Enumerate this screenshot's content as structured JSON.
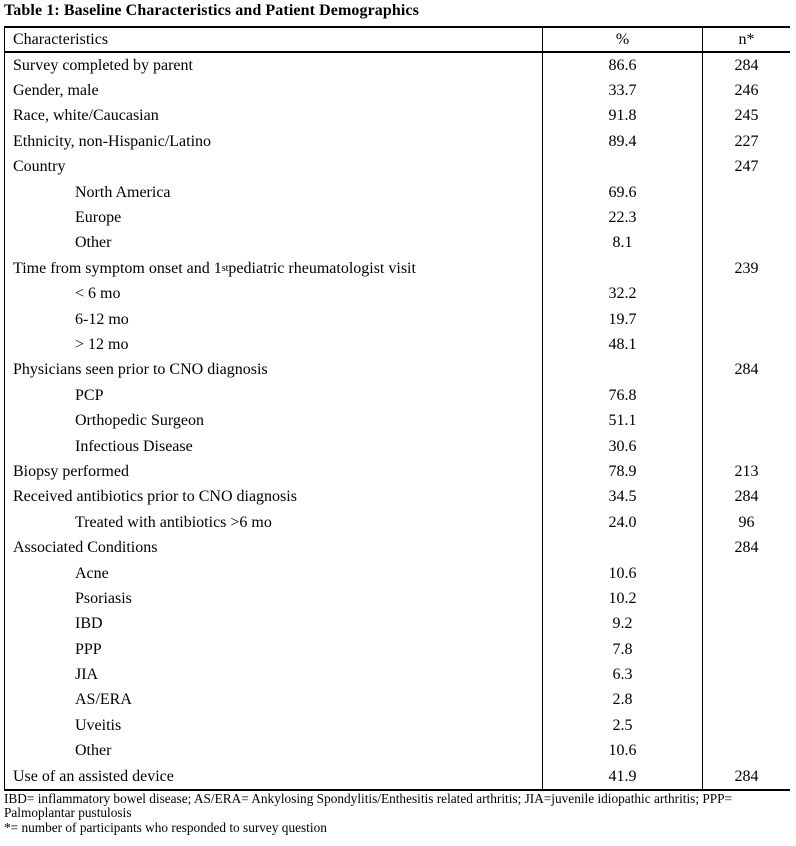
{
  "title": "Table 1: Baseline Characteristics and Patient Demographics",
  "table": {
    "columns": {
      "characteristics": "Characteristics",
      "percent": "%",
      "n": "n*"
    },
    "rows": [
      {
        "label": "Survey completed by parent",
        "indent": false,
        "pct": "86.6",
        "n": "284"
      },
      {
        "label": "Gender, male",
        "indent": false,
        "pct": "33.7",
        "n": "246"
      },
      {
        "label": "Race, white/Caucasian",
        "indent": false,
        "pct": "91.8",
        "n": "245"
      },
      {
        "label": "Ethnicity, non-Hispanic/Latino",
        "indent": false,
        "pct": "89.4",
        "n": "227"
      },
      {
        "label": "Country",
        "indent": false,
        "pct": "",
        "n": "247"
      },
      {
        "label": "North America",
        "indent": true,
        "pct": "69.6",
        "n": ""
      },
      {
        "label": "Europe",
        "indent": true,
        "pct": "22.3",
        "n": ""
      },
      {
        "label": "Other",
        "indent": true,
        "pct": "8.1",
        "n": ""
      },
      {
        "label_pre": "Time from symptom onset and 1",
        "label_sup": "st",
        "label_post": " pediatric rheumatologist visit",
        "indent": false,
        "pct": "",
        "n": "239"
      },
      {
        "label": "< 6 mo",
        "indent": true,
        "pct": "32.2",
        "n": ""
      },
      {
        "label": "6-12 mo",
        "indent": true,
        "pct": "19.7",
        "n": ""
      },
      {
        "label": "> 12 mo",
        "indent": true,
        "pct": "48.1",
        "n": ""
      },
      {
        "label": "Physicians seen prior to CNO diagnosis",
        "indent": false,
        "pct": "",
        "n": "284"
      },
      {
        "label": "PCP",
        "indent": true,
        "pct": "76.8",
        "n": ""
      },
      {
        "label": "Orthopedic Surgeon",
        "indent": true,
        "pct": "51.1",
        "n": ""
      },
      {
        "label": "Infectious Disease",
        "indent": true,
        "pct": "30.6",
        "n": ""
      },
      {
        "label": "Biopsy performed",
        "indent": false,
        "pct": "78.9",
        "n": "213"
      },
      {
        "label": "Received antibiotics prior to CNO diagnosis",
        "indent": false,
        "pct": "34.5",
        "n": "284"
      },
      {
        "label": "Treated with antibiotics >6 mo",
        "indent": true,
        "pct": "24.0",
        "n": "96"
      },
      {
        "label": "Associated Conditions",
        "indent": false,
        "pct": "",
        "n": "284"
      },
      {
        "label": "Acne",
        "indent": true,
        "pct": "10.6",
        "n": ""
      },
      {
        "label": "Psoriasis",
        "indent": true,
        "pct": "10.2",
        "n": ""
      },
      {
        "label": "IBD",
        "indent": true,
        "pct": "9.2",
        "n": ""
      },
      {
        "label": "PPP",
        "indent": true,
        "pct": "7.8",
        "n": ""
      },
      {
        "label": "JIA",
        "indent": true,
        "pct": "6.3",
        "n": ""
      },
      {
        "label": "AS/ERA",
        "indent": true,
        "pct": "2.8",
        "n": ""
      },
      {
        "label": "Uveitis",
        "indent": true,
        "pct": "2.5",
        "n": ""
      },
      {
        "label": "Other",
        "indent": true,
        "pct": "10.6",
        "n": ""
      },
      {
        "label": "Use of an assisted device",
        "indent": false,
        "pct": "41.9",
        "n": "284"
      }
    ]
  },
  "footnotes": {
    "abbreviations": "IBD= inflammatory bowel disease; AS/ERA= Ankylosing Spondylitis/Enthesitis related arthritis; JIA=juvenile idiopathic arthritis; PPP= Palmoplantar pustulosis",
    "asterisk": "*= number of participants who responded to survey question"
  }
}
